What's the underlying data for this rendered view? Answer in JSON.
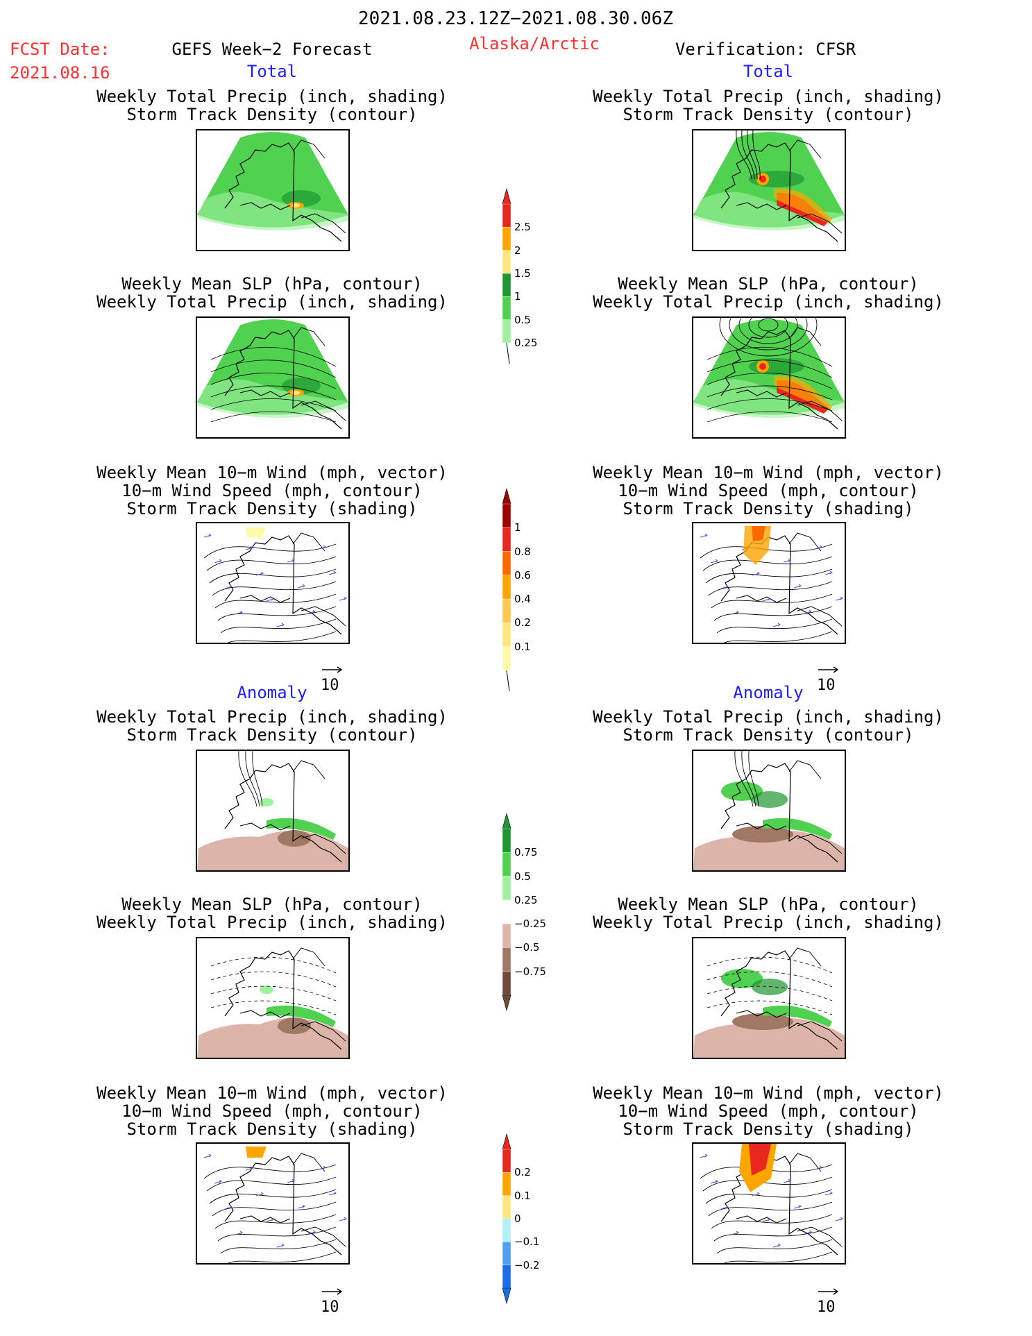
{
  "header": {
    "period": "2021.08.23.12Z−2021.08.30.06Z",
    "fcst_label": "FCST Date:",
    "fcst_date": "2021.08.16",
    "model_title": "GEFS Week−2 Forecast",
    "region": "Alaska/Arctic",
    "verification": "Verification: CFSR"
  },
  "sections": {
    "total": "Total",
    "anomaly": "Anomaly"
  },
  "panel_titles": {
    "precip_track": [
      "Weekly Total Precip (inch, shading)",
      "Storm Track Density (contour)"
    ],
    "slp_precip": [
      "Weekly Mean SLP (hPa, contour)",
      "Weekly Total Precip (inch, shading)"
    ],
    "wind_track": [
      "Weekly Mean 10−m Wind (mph, vector)",
      "10−m Wind Speed (mph, contour)",
      "Storm Track Density (shading)"
    ]
  },
  "vector_ref": "10",
  "colorbars": {
    "precip_total": {
      "labels": [
        "2.5",
        "2",
        "1.5",
        "1",
        "0.5",
        "0.25"
      ],
      "colors": [
        "#e8281e",
        "#ffa500",
        "#ffe680",
        "#1e9632",
        "#50d250",
        "#a0f0a0"
      ]
    },
    "track_total": {
      "labels": [
        "1",
        "0.8",
        "0.6",
        "0.4",
        "0.2",
        "0.1"
      ],
      "colors": [
        "#a00000",
        "#e8281e",
        "#ff6a00",
        "#ffa500",
        "#ffc850",
        "#ffe680",
        "#fffaaa"
      ]
    },
    "precip_anom": {
      "labels": [
        "0.75",
        "0.5",
        "0.25",
        "−0.25",
        "−0.5",
        "−0.75"
      ],
      "colors": [
        "#1e9632",
        "#50d250",
        "#a0f0a0",
        "#ffffff",
        "#dcb4aa",
        "#a07864",
        "#6e4b3c"
      ]
    },
    "track_anom": {
      "labels": [
        "0.2",
        "0.1",
        "0",
        "−0.1",
        "−0.2"
      ],
      "colors": [
        "#e8281e",
        "#ffa500",
        "#ffe680",
        "#b4f0fa",
        "#50a0f0",
        "#1e6ee6"
      ]
    }
  }
}
